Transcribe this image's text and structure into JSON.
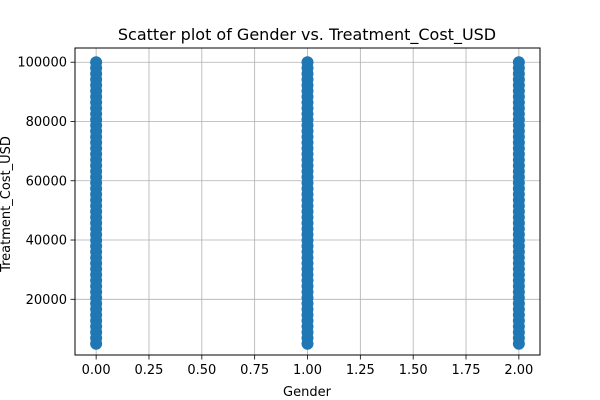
{
  "chart_data": {
    "type": "scatter",
    "title": "Scatter plot of Gender vs. Treatment_Cost_USD",
    "xlabel": "Gender",
    "ylabel": "Treatment_Cost_USD",
    "xlim": [
      -0.1,
      2.1
    ],
    "ylim": [
      1200,
      104800
    ],
    "xticks": [
      0.0,
      0.25,
      0.5,
      0.75,
      1.0,
      1.25,
      1.5,
      1.75,
      2.0
    ],
    "xtick_labels": [
      "0.00",
      "0.25",
      "0.50",
      "0.75",
      "1.00",
      "1.25",
      "1.50",
      "1.75",
      "2.00"
    ],
    "yticks": [
      20000,
      40000,
      60000,
      80000,
      100000
    ],
    "ytick_labels": [
      "20000",
      "40000",
      "60000",
      "80000",
      "100000"
    ],
    "grid": true,
    "series": [
      {
        "x": [
          0,
          0,
          0,
          0,
          0,
          0,
          0,
          0,
          0,
          0,
          0,
          0,
          0,
          0,
          0,
          0,
          0,
          0,
          0,
          0,
          0,
          0,
          0,
          0,
          0,
          0,
          0,
          0,
          0,
          0,
          0,
          0,
          0,
          0,
          0,
          0,
          0,
          0,
          0,
          0,
          0,
          0,
          0,
          0,
          0,
          0,
          0,
          0,
          0,
          0,
          1,
          1,
          1,
          1,
          1,
          1,
          1,
          1,
          1,
          1,
          1,
          1,
          1,
          1,
          1,
          1,
          1,
          1,
          1,
          1,
          1,
          1,
          1,
          1,
          1,
          1,
          1,
          1,
          1,
          1,
          1,
          1,
          1,
          1,
          1,
          1,
          1,
          1,
          1,
          1,
          1,
          1,
          1,
          1,
          1,
          1,
          1,
          1,
          1,
          1,
          2,
          2,
          2,
          2,
          2,
          2,
          2,
          2,
          2,
          2,
          2,
          2,
          2,
          2,
          2,
          2,
          2,
          2,
          2,
          2,
          2,
          2,
          2,
          2,
          2,
          2,
          2,
          2,
          2,
          2,
          2,
          2,
          2,
          2,
          2,
          2,
          2,
          2,
          2,
          2,
          2,
          2,
          2,
          2,
          2,
          2,
          2,
          2,
          2,
          2
        ],
        "y": [
          5000,
          6939,
          8878,
          10816,
          12755,
          14694,
          16633,
          18571,
          20510,
          22449,
          24388,
          26327,
          28265,
          30204,
          32143,
          34082,
          36020,
          37959,
          39898,
          41837,
          43776,
          45714,
          47653,
          49592,
          51531,
          53469,
          55408,
          57347,
          59286,
          61224,
          63163,
          65102,
          67041,
          68980,
          70918,
          72857,
          74796,
          76735,
          78673,
          80612,
          82551,
          84490,
          86429,
          88367,
          90306,
          92245,
          94184,
          96122,
          98061,
          100000,
          5000,
          6939,
          8878,
          10816,
          12755,
          14694,
          16633,
          18571,
          20510,
          22449,
          24388,
          26327,
          28265,
          30204,
          32143,
          34082,
          36020,
          37959,
          39898,
          41837,
          43776,
          45714,
          47653,
          49592,
          51531,
          53469,
          55408,
          57347,
          59286,
          61224,
          63163,
          65102,
          67041,
          68980,
          70918,
          72857,
          74796,
          76735,
          78673,
          80612,
          82551,
          84490,
          86429,
          88367,
          90306,
          92245,
          94184,
          96122,
          98061,
          100000,
          5000,
          6939,
          8878,
          10816,
          12755,
          14694,
          16633,
          18571,
          20510,
          22449,
          24388,
          26327,
          28265,
          30204,
          32143,
          34082,
          36020,
          37959,
          39898,
          41837,
          43776,
          45714,
          47653,
          49592,
          51531,
          53469,
          55408,
          57347,
          59286,
          61224,
          63163,
          65102,
          67041,
          68980,
          70918,
          72857,
          74796,
          76735,
          78673,
          80612,
          82551,
          84490,
          86429,
          88367,
          90306,
          92245,
          94184,
          96122,
          98061,
          100000
        ],
        "color": "#1f77b4"
      }
    ]
  }
}
